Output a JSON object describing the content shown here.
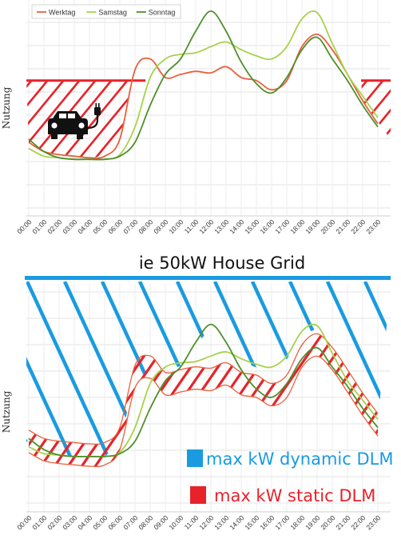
{
  "chart_data": [
    {
      "type": "line",
      "title": "",
      "xlabel": "",
      "ylabel": "Nutzung",
      "categories": [
        "00:00",
        "01:00",
        "02:00",
        "03:00",
        "04:00",
        "05:00",
        "06:00",
        "07:00",
        "08:00",
        "09:00",
        "10:00",
        "11:00",
        "12:00",
        "13:00",
        "14:00",
        "15:00",
        "16:00",
        "17:00",
        "18:00",
        "19:00",
        "20:00",
        "21:00",
        "22:00",
        "23:00"
      ],
      "ylim": [
        0,
        100
      ],
      "grid": true,
      "legend_position": "top-left",
      "series": [
        {
          "name": "Werktag",
          "color": "#e8603c",
          "values": [
            28,
            22,
            20,
            19,
            18,
            19,
            30,
            75,
            82,
            70,
            72,
            74,
            73,
            77,
            70,
            68,
            62,
            68,
            90,
            98,
            88,
            72,
            55,
            40
          ]
        },
        {
          "name": "Samstag",
          "color": "#a8d14a",
          "values": [
            24,
            19,
            18,
            17,
            17,
            17,
            20,
            38,
            70,
            82,
            85,
            86,
            90,
            93,
            88,
            84,
            82,
            90,
            108,
            112,
            92,
            72,
            58,
            44
          ]
        },
        {
          "name": "Sonntag",
          "color": "#4f8f2b",
          "values": [
            30,
            22,
            18,
            17,
            17,
            17,
            19,
            28,
            52,
            72,
            82,
            100,
            113,
            100,
            80,
            66,
            60,
            70,
            88,
            96,
            82,
            68,
            52,
            38
          ]
        }
      ],
      "annotations": {
        "static_limit_level": 68,
        "charging_icon": "ev-car-charging-icon"
      }
    },
    {
      "type": "line",
      "title": "ie 50kW House Grid",
      "xlabel": "",
      "ylabel": "Nutzung",
      "categories": [
        "00:00",
        "01:00",
        "02:00",
        "03:00",
        "04:00",
        "05:00",
        "06:00",
        "07:00",
        "08:00",
        "09:00",
        "10:00",
        "11:00",
        "12:00",
        "13:00",
        "14:00",
        "15:00",
        "16:00",
        "17:00",
        "18:00",
        "19:00",
        "20:00",
        "21:00",
        "22:00",
        "23:00"
      ],
      "ylim": [
        0,
        100
      ],
      "grid": true,
      "series": [
        {
          "name": "",
          "color": "#e8603c",
          "values": [
            28,
            22,
            20,
            19,
            18,
            19,
            30,
            75,
            82,
            70,
            72,
            74,
            73,
            77,
            70,
            68,
            62,
            68,
            90,
            98,
            88,
            72,
            55,
            40
          ]
        },
        {
          "name": "",
          "color": "#a8d14a",
          "values": [
            24,
            19,
            18,
            17,
            17,
            17,
            20,
            38,
            70,
            82,
            85,
            86,
            90,
            93,
            88,
            84,
            82,
            90,
            108,
            112,
            92,
            72,
            58,
            44
          ]
        },
        {
          "name": "",
          "color": "#4f8f2b",
          "values": [
            30,
            22,
            18,
            17,
            17,
            17,
            19,
            28,
            52,
            72,
            82,
            100,
            113,
            100,
            80,
            66,
            60,
            70,
            88,
            96,
            82,
            68,
            52,
            38
          ]
        }
      ],
      "legend": [
        {
          "label": "max kW dynamic DLM",
          "color": "#1a9be0"
        },
        {
          "label": "max kW static DLM",
          "color": "#e8222a"
        }
      ],
      "grid_limit_color": "#1a9be0"
    }
  ]
}
